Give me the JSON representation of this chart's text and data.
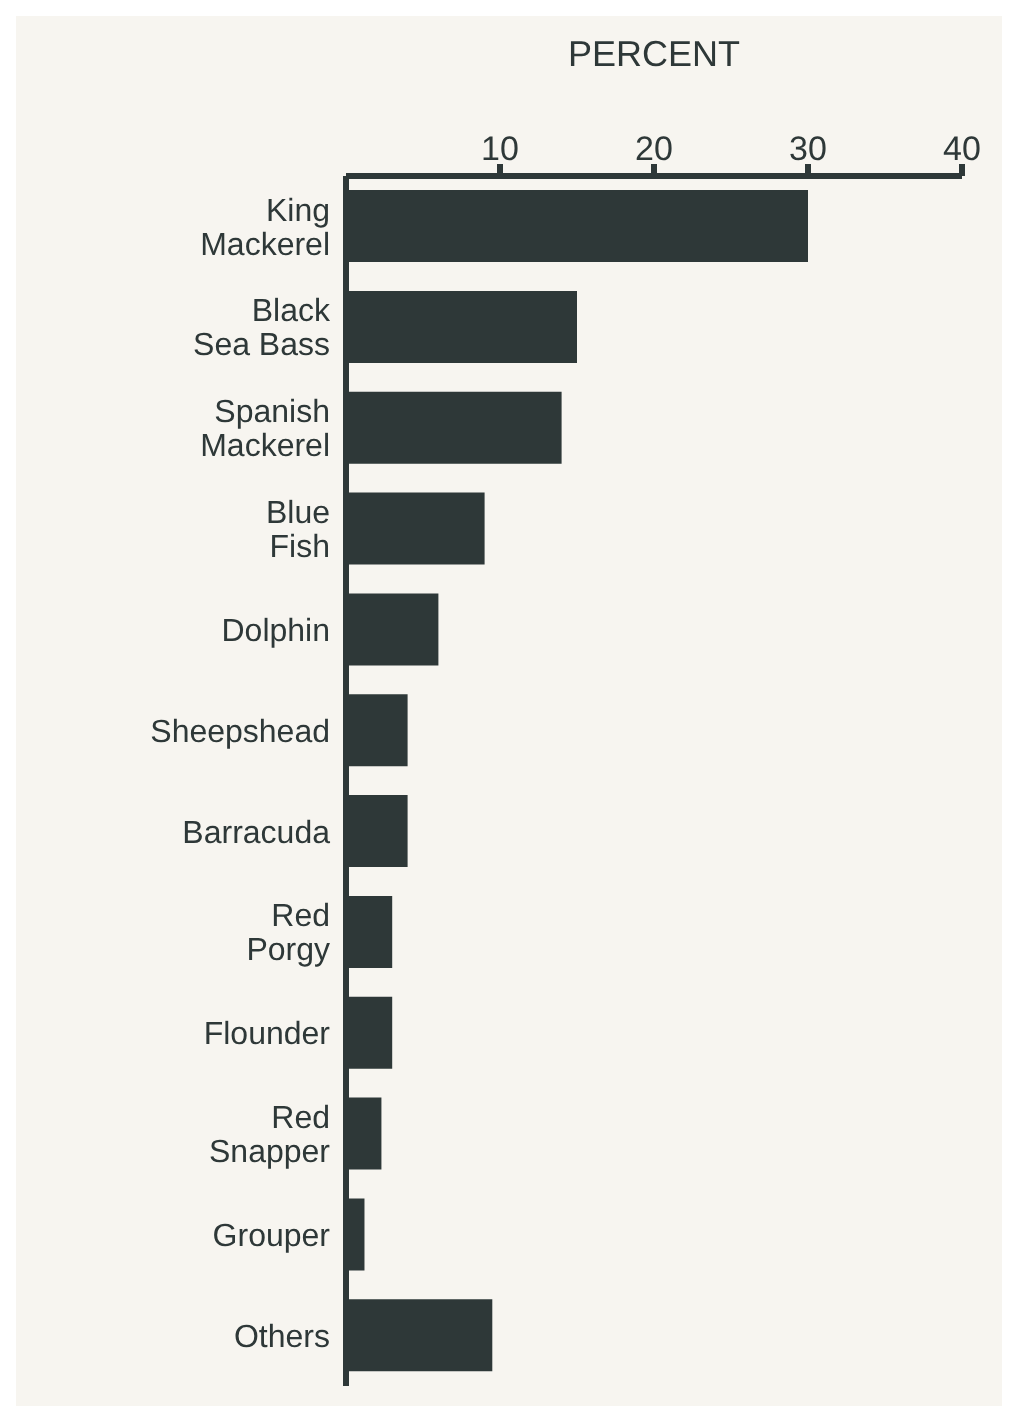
{
  "chart_data": {
    "type": "bar",
    "orientation": "horizontal",
    "xlabel": "PERCENT",
    "categories": [
      "King\nMackerel",
      "Black\nSea Bass",
      "Spanish\nMackerel",
      "Blue\nFish",
      "Dolphin",
      "Sheepshead",
      "Barracuda",
      "Red\nPorgy",
      "Flounder",
      "Red\nSnapper",
      "Grouper",
      "Others"
    ],
    "values": [
      30,
      15,
      14,
      9,
      6,
      4,
      4,
      3,
      3,
      2.3,
      1.2,
      9.5
    ],
    "color": "#2e3838",
    "xlim": [
      0,
      40
    ],
    "xticks": [
      10,
      20,
      30,
      40
    ],
    "grid": false
  }
}
